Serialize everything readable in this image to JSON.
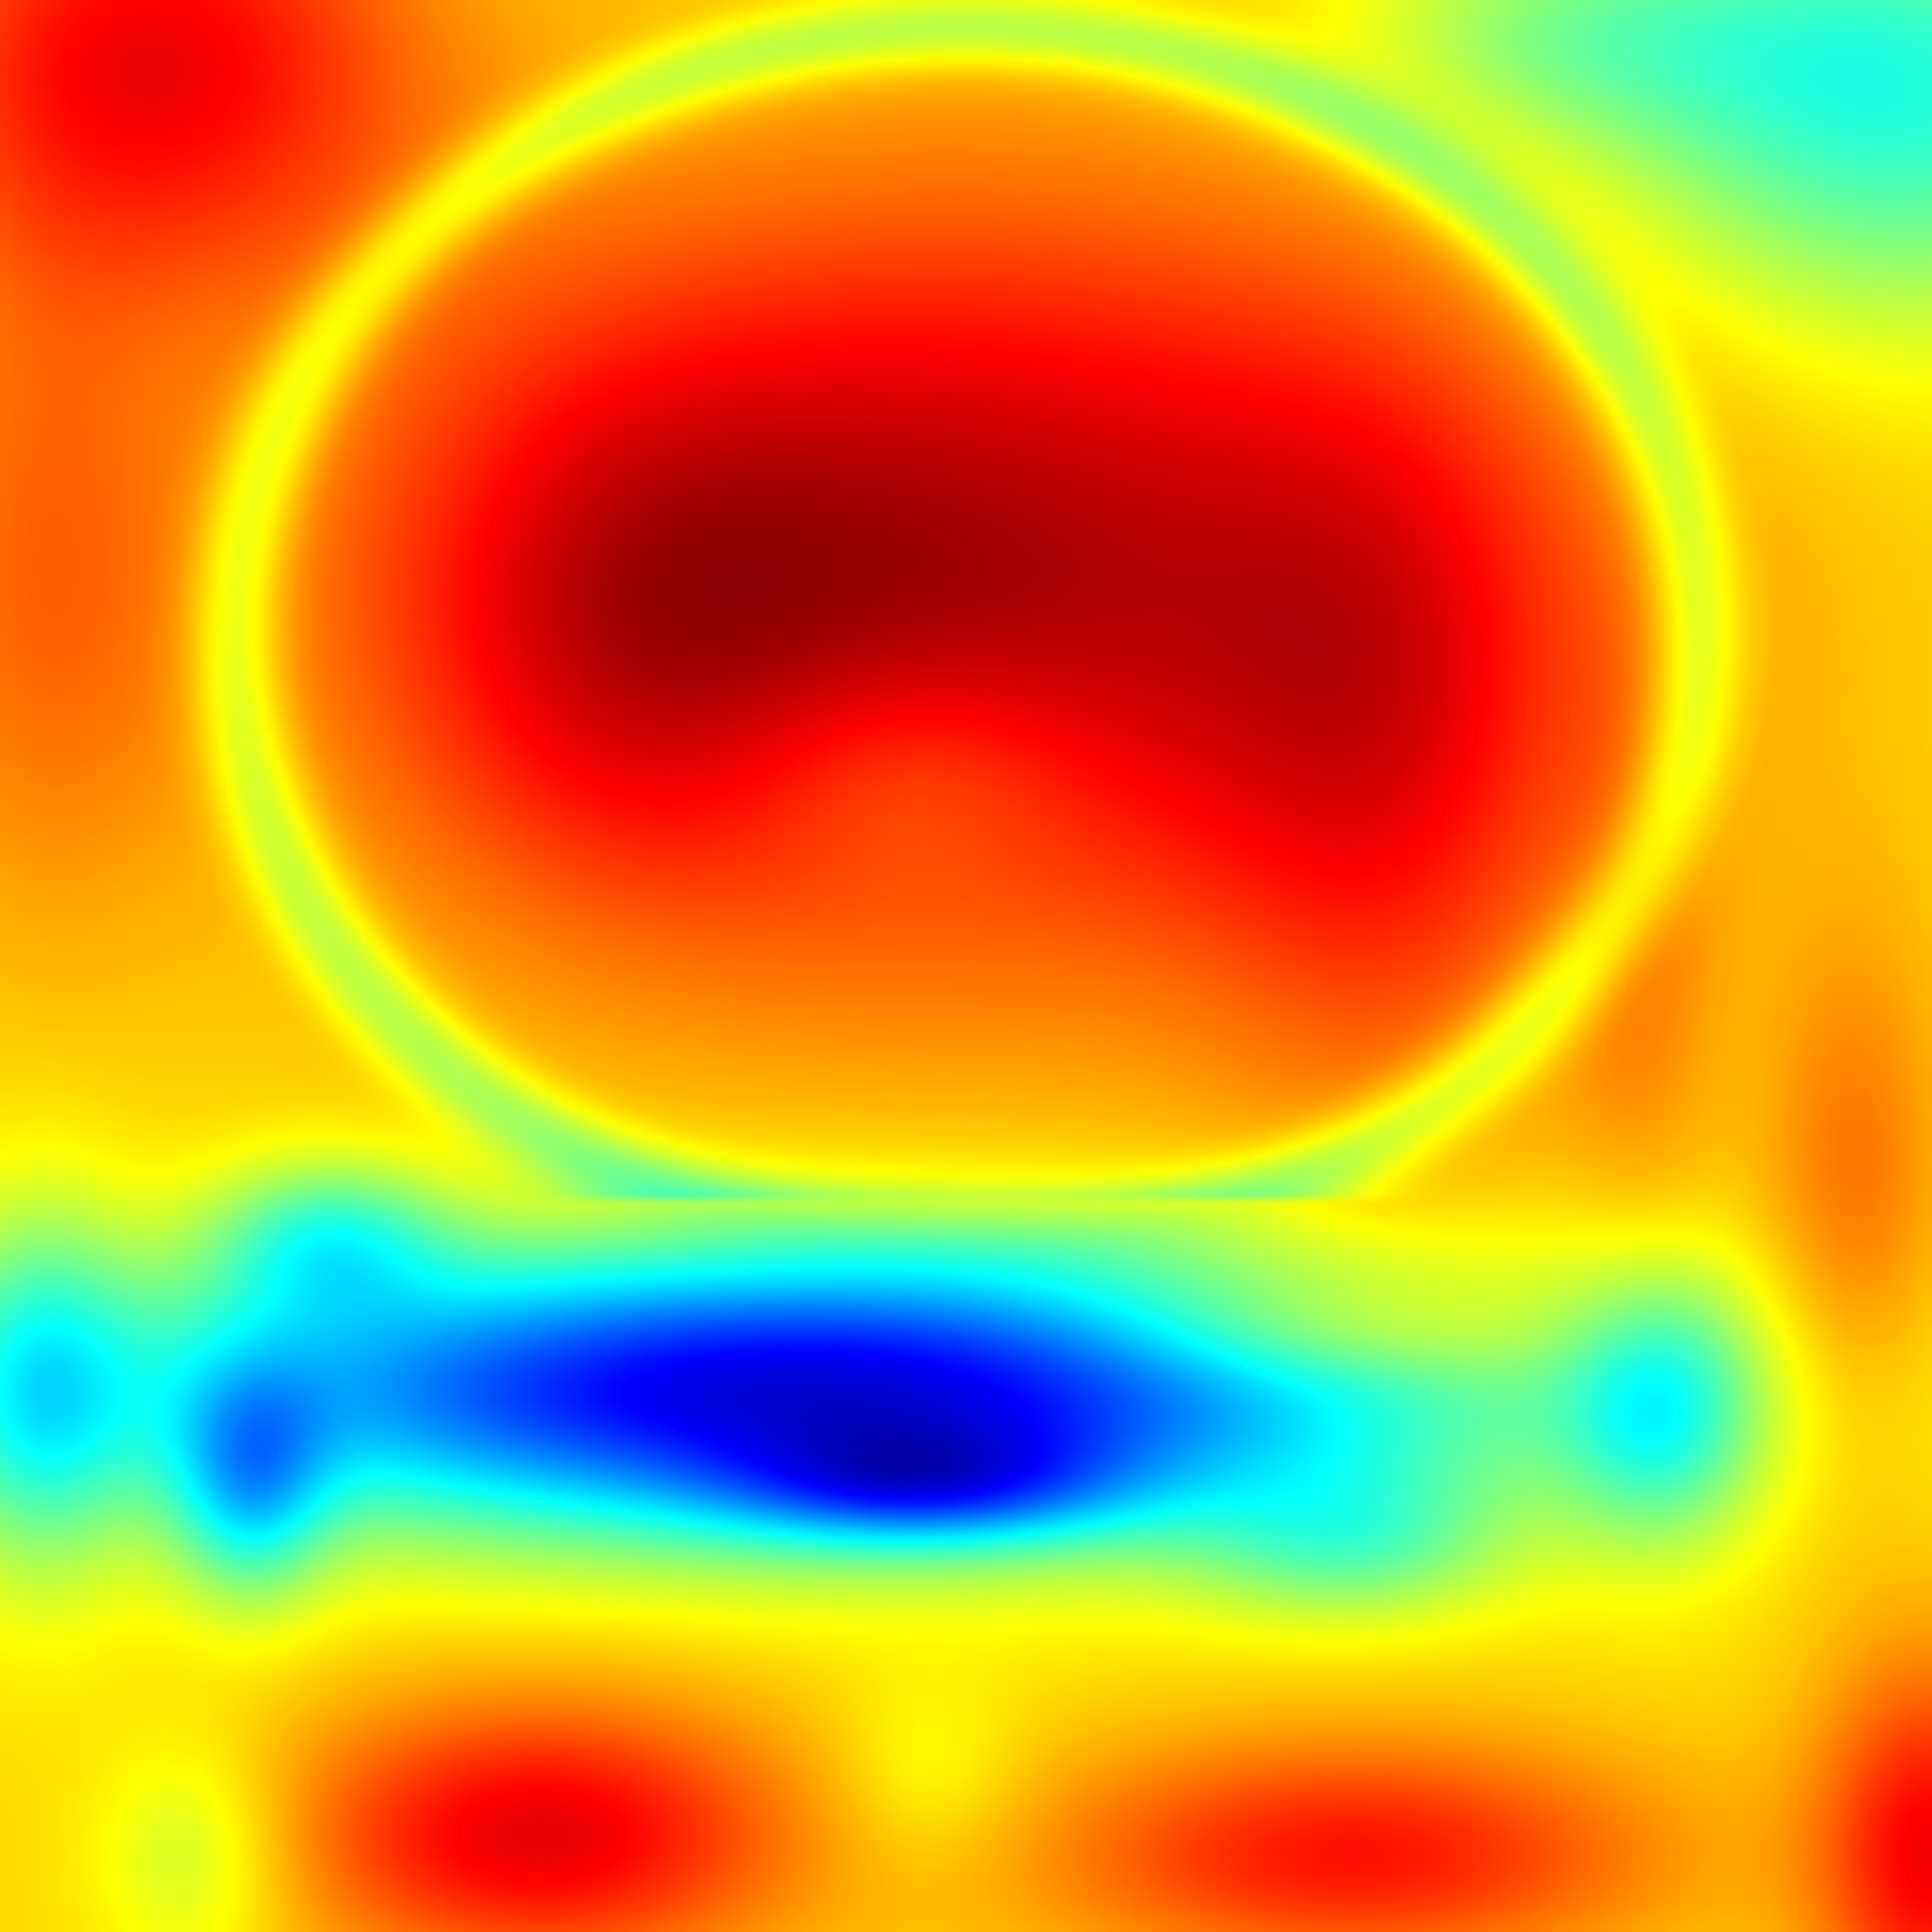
{
  "image": {
    "kind": "heatmap-overlay",
    "colormap": "jet",
    "colormap_stops": [
      "#00008b",
      "#0000ff",
      "#00bfff",
      "#00ffff",
      "#7fff7f",
      "#ffff00",
      "#ff8c00",
      "#ff0000",
      "#7f0000"
    ],
    "text": []
  }
}
